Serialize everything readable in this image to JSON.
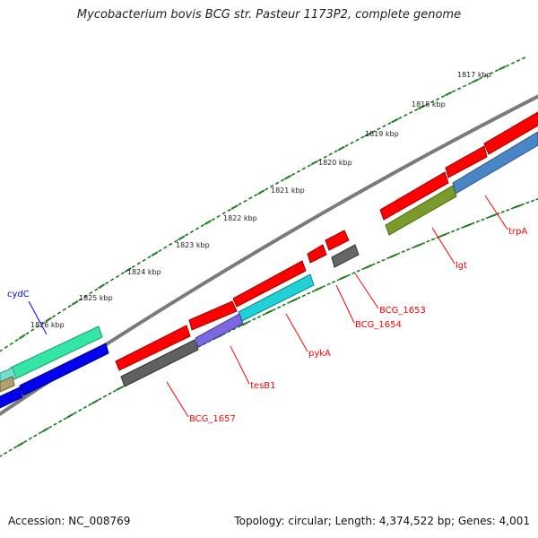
{
  "title": "Mycobacterium bovis BCG str. Pasteur 1173P2, complete genome",
  "accession": "Accession: NC_008769",
  "topology": "Topology: circular; Length: 4,374,522 bp; Genes: 4,001",
  "colors": {
    "tick": "#1a7a1a",
    "backbone": "#808080",
    "label_line": "#ff0000",
    "cydC_label": "#0000ff"
  },
  "kbp_labels": [
    "1817 kbp",
    "1818 kbp",
    "1819 kbp",
    "1820 kbp",
    "1821 kbp",
    "1822 kbp",
    "1823 kbp",
    "1824 kbp",
    "1825 kbp",
    "1826 kbp"
  ],
  "genes": [
    {
      "name": "trpA",
      "color": "#ff0000"
    },
    {
      "name": "lgt",
      "color": "#ff0000"
    },
    {
      "name": "BCG_1653",
      "color": "#ff0000"
    },
    {
      "name": "BCG_1654",
      "color": "#ff0000"
    },
    {
      "name": "pykA",
      "color": "#ff0000"
    },
    {
      "name": "tesB1",
      "color": "#ff0000"
    },
    {
      "name": "BCG_1657",
      "color": "#ff0000"
    },
    {
      "name": "cydC",
      "color": "#0000ff"
    }
  ]
}
